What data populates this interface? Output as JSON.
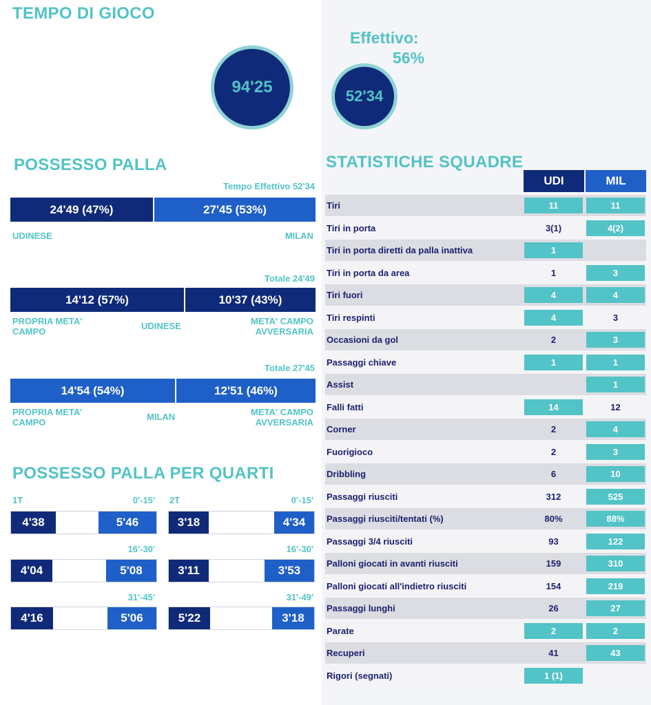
{
  "playtime": {
    "title": "TEMPO DI GIOCO",
    "total": "94'25",
    "effective": "52'34",
    "effective_label": "Effettivo:",
    "effective_pct": "56%"
  },
  "possession": {
    "title": "POSSESSO PALLA",
    "effective_time_label": "Tempo Effettivo 52'34",
    "home_value": "24'49 (47%)",
    "away_value": "27'45 (53%)",
    "home_team": "UDINESE",
    "away_team": "MILAN",
    "udinese": {
      "total_label": "Totale 24'49",
      "own_half_value": "14'12 (57%)",
      "opp_half_value": "10'37 (43%)",
      "own_half_label": "PROPRIA META' CAMPO",
      "team_label": "UDINESE",
      "opp_half_label": "META' CAMPO AVVERSARIA"
    },
    "milan": {
      "total_label": "Totale 27'45",
      "own_half_value": "14'54 (54%)",
      "opp_half_value": "12'51 (46%)",
      "own_half_label": "PROPRIA META' CAMPO",
      "team_label": "MILAN",
      "opp_half_label": "META' CAMPO AVVERSARIA"
    }
  },
  "quarters": {
    "title": "POSSESSO PALLA PER QUARTI",
    "first_half": {
      "label": "1T",
      "rows": [
        {
          "range": "0'-15'",
          "home": "4'38",
          "away": "5'46"
        },
        {
          "range": "16'-30'",
          "home": "4'04",
          "away": "5'08"
        },
        {
          "range": "31'-45'",
          "home": "4'16",
          "away": "5'06"
        }
      ]
    },
    "second_half": {
      "label": "2T",
      "rows": [
        {
          "range": "0'-15'",
          "home": "3'18",
          "away": "4'34"
        },
        {
          "range": "16'-30'",
          "home": "3'11",
          "away": "3'53"
        },
        {
          "range": "31'-49'",
          "home": "5'22",
          "away": "3'18"
        }
      ]
    }
  },
  "team_stats": {
    "title": "STATISTICHE SQUADRE",
    "home_header": "UDI",
    "away_header": "MIL",
    "colors": {
      "highlight": "#52c3c6",
      "home": "#0f2a78",
      "away": "#1f5fc8"
    },
    "rows": [
      {
        "label": "Tiri",
        "udi": "11",
        "mil": "11",
        "udi_hl": true,
        "mil_hl": true
      },
      {
        "label": "Tiri in porta",
        "udi": "3(1)",
        "mil": "4(2)",
        "udi_hl": false,
        "mil_hl": true
      },
      {
        "label": "Tiri in porta diretti da palla inattiva",
        "udi": "1",
        "mil": "",
        "udi_hl": true,
        "mil_hl": false
      },
      {
        "label": "Tiri in porta da area",
        "udi": "1",
        "mil": "3",
        "udi_hl": false,
        "mil_hl": true
      },
      {
        "label": "Tiri fuori",
        "udi": "4",
        "mil": "4",
        "udi_hl": true,
        "mil_hl": true
      },
      {
        "label": "Tiri respinti",
        "udi": "4",
        "mil": "3",
        "udi_hl": true,
        "mil_hl": false
      },
      {
        "label": "Occasioni da gol",
        "udi": "2",
        "mil": "3",
        "udi_hl": false,
        "mil_hl": true
      },
      {
        "label": "Passaggi chiave",
        "udi": "1",
        "mil": "1",
        "udi_hl": true,
        "mil_hl": true
      },
      {
        "label": "Assist",
        "udi": "",
        "mil": "1",
        "udi_hl": false,
        "mil_hl": true
      },
      {
        "label": "Falli fatti",
        "udi": "14",
        "mil": "12",
        "udi_hl": true,
        "mil_hl": false
      },
      {
        "label": "Corner",
        "udi": "2",
        "mil": "4",
        "udi_hl": false,
        "mil_hl": true
      },
      {
        "label": "Fuorigioco",
        "udi": "2",
        "mil": "3",
        "udi_hl": false,
        "mil_hl": true
      },
      {
        "label": "Dribbling",
        "udi": "6",
        "mil": "10",
        "udi_hl": false,
        "mil_hl": true
      },
      {
        "label": "Passaggi riusciti",
        "udi": "312",
        "mil": "525",
        "udi_hl": false,
        "mil_hl": true
      },
      {
        "label": "Passaggi riusciti/tentati (%)",
        "udi": "80%",
        "mil": "88%",
        "udi_hl": false,
        "mil_hl": true
      },
      {
        "label": "Passaggi 3/4 riusciti",
        "udi": "93",
        "mil": "122",
        "udi_hl": false,
        "mil_hl": true
      },
      {
        "label": "Palloni giocati in avanti riusciti",
        "udi": "159",
        "mil": "310",
        "udi_hl": false,
        "mil_hl": true
      },
      {
        "label": "Palloni giocati all'indietro riusciti",
        "udi": "154",
        "mil": "219",
        "udi_hl": false,
        "mil_hl": true
      },
      {
        "label": "Passaggi lunghi",
        "udi": "26",
        "mil": "27",
        "udi_hl": false,
        "mil_hl": true
      },
      {
        "label": "Parate",
        "udi": "2",
        "mil": "2",
        "udi_hl": true,
        "mil_hl": true
      },
      {
        "label": "Recuperi",
        "udi": "41",
        "mil": "43",
        "udi_hl": false,
        "mil_hl": true
      },
      {
        "label": "Rigori (segnati)",
        "udi": "1 (1)",
        "mil": "",
        "udi_hl": true,
        "mil_hl": false
      }
    ]
  }
}
